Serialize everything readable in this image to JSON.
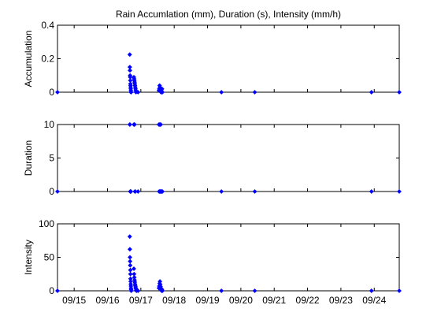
{
  "chart_data": [
    {
      "type": "scatter",
      "title": "Rain Accumlation (mm), Duration (s), Intensity (mm/h)",
      "ylabel": "Accumulation",
      "xlim": [
        "09/14 12:00",
        "09/24 18:00"
      ],
      "ylim": [
        0,
        0.4
      ],
      "yticks": [
        0,
        0.2,
        0.4
      ],
      "ytick_labels": [
        "0",
        "0.2",
        "0.4"
      ],
      "grid": false,
      "marker_color": "#0000ff",
      "points": [
        [
          "09/14 12:00",
          0
        ],
        [
          "09/16 16:00",
          0.225
        ],
        [
          "09/16 16:05",
          0.15
        ],
        [
          "09/16 16:10",
          0.13
        ],
        [
          "09/16 16:15",
          0.1
        ],
        [
          "09/16 16:20",
          0.09
        ],
        [
          "09/16 16:25",
          0.07
        ],
        [
          "09/16 16:30",
          0.05
        ],
        [
          "09/16 16:35",
          0.04
        ],
        [
          "09/16 16:40",
          0.03
        ],
        [
          "09/16 16:45",
          0.02
        ],
        [
          "09/16 16:50",
          0.01
        ],
        [
          "09/16 16:55",
          0
        ],
        [
          "09/16 17:00",
          0
        ],
        [
          "09/16 19:00",
          0.09
        ],
        [
          "09/16 19:10",
          0.08
        ],
        [
          "09/16 19:20",
          0.07
        ],
        [
          "09/16 19:30",
          0.06
        ],
        [
          "09/16 19:40",
          0.05
        ],
        [
          "09/16 19:50",
          0.04
        ],
        [
          "09/16 20:00",
          0.03
        ],
        [
          "09/16 20:10",
          0.02
        ],
        [
          "09/16 20:20",
          0.01
        ],
        [
          "09/16 20:30",
          0
        ],
        [
          "09/16 22:00",
          0
        ],
        [
          "09/17 13:00",
          0.01
        ],
        [
          "09/17 13:15",
          0.02
        ],
        [
          "09/17 13:30",
          0.04
        ],
        [
          "09/17 13:45",
          0.03
        ],
        [
          "09/17 14:00",
          0.02
        ],
        [
          "09/17 14:15",
          0.01
        ],
        [
          "09/17 14:30",
          0
        ],
        [
          "09/17 14:45",
          0.01
        ],
        [
          "09/17 15:00",
          0
        ],
        [
          "09/17 15:15",
          0.02
        ],
        [
          "09/17 15:30",
          0
        ],
        [
          "09/19 10:00",
          0
        ],
        [
          "09/20 10:00",
          0
        ],
        [
          "09/23 22:00",
          0
        ],
        [
          "09/24 18:00",
          0
        ]
      ]
    },
    {
      "type": "scatter",
      "ylabel": "Duration",
      "xlim": [
        "09/14 12:00",
        "09/24 18:00"
      ],
      "ylim": [
        0,
        10
      ],
      "yticks": [
        0,
        5,
        10
      ],
      "ytick_labels": [
        "0",
        "5",
        "10"
      ],
      "grid": false,
      "marker_color": "#0000ff",
      "points": [
        [
          "09/14 12:00",
          0
        ],
        [
          "09/16 16:00",
          10
        ],
        [
          "09/16 16:10",
          10
        ],
        [
          "09/16 16:20",
          0
        ],
        [
          "09/16 16:30",
          0
        ],
        [
          "09/16 16:40",
          0
        ],
        [
          "09/16 16:50",
          0
        ],
        [
          "09/16 19:00",
          10
        ],
        [
          "09/16 19:15",
          10
        ],
        [
          "09/16 19:30",
          10
        ],
        [
          "09/16 19:45",
          0
        ],
        [
          "09/16 20:00",
          0
        ],
        [
          "09/16 22:00",
          0
        ],
        [
          "09/17 13:00",
          10
        ],
        [
          "09/17 13:20",
          10
        ],
        [
          "09/17 13:40",
          10
        ],
        [
          "09/17 14:00",
          10
        ],
        [
          "09/17 14:20",
          10
        ],
        [
          "09/17 13:10",
          0
        ],
        [
          "09/17 13:30",
          0
        ],
        [
          "09/17 13:50",
          0
        ],
        [
          "09/17 14:10",
          0
        ],
        [
          "09/17 14:30",
          0
        ],
        [
          "09/17 14:50",
          0
        ],
        [
          "09/17 15:10",
          0
        ],
        [
          "09/17 15:30",
          0
        ],
        [
          "09/19 10:00",
          0
        ],
        [
          "09/20 10:00",
          0
        ],
        [
          "09/23 22:00",
          0
        ],
        [
          "09/24 18:00",
          0
        ]
      ]
    },
    {
      "type": "scatter",
      "ylabel": "Intensity",
      "xlim": [
        "09/14 12:00",
        "09/24 18:00"
      ],
      "ylim": [
        0,
        100
      ],
      "yticks": [
        0,
        50,
        100
      ],
      "ytick_labels": [
        "0",
        "50",
        "100"
      ],
      "xticks": [
        "09/15",
        "09/16",
        "09/17",
        "09/18",
        "09/19",
        "09/20",
        "09/21",
        "09/22",
        "09/23",
        "09/24"
      ],
      "xtick_labels": [
        "09/15",
        "09/16",
        "09/17",
        "09/18",
        "09/19",
        "09/20",
        "09/21",
        "09/22",
        "09/23",
        "09/24"
      ],
      "grid": false,
      "marker_color": "#0000ff",
      "points": [
        [
          "09/14 12:00",
          0
        ],
        [
          "09/16 16:00",
          81
        ],
        [
          "09/16 16:05",
          62
        ],
        [
          "09/16 16:10",
          50
        ],
        [
          "09/16 16:15",
          44
        ],
        [
          "09/16 16:20",
          38
        ],
        [
          "09/16 16:25",
          31
        ],
        [
          "09/16 16:30",
          25
        ],
        [
          "09/16 16:35",
          18
        ],
        [
          "09/16 16:40",
          14
        ],
        [
          "09/16 16:45",
          10
        ],
        [
          "09/16 16:50",
          7
        ],
        [
          "09/16 16:55",
          4
        ],
        [
          "09/16 17:00",
          2
        ],
        [
          "09/16 17:05",
          0
        ],
        [
          "09/16 19:00",
          33
        ],
        [
          "09/16 19:10",
          25
        ],
        [
          "09/16 19:20",
          20
        ],
        [
          "09/16 19:30",
          16
        ],
        [
          "09/16 19:40",
          13
        ],
        [
          "09/16 19:50",
          10
        ],
        [
          "09/16 20:00",
          8
        ],
        [
          "09/16 20:10",
          6
        ],
        [
          "09/16 20:20",
          4
        ],
        [
          "09/16 20:30",
          3
        ],
        [
          "09/16 20:40",
          1
        ],
        [
          "09/16 20:50",
          0
        ],
        [
          "09/16 22:00",
          0
        ],
        [
          "09/17 13:00",
          4
        ],
        [
          "09/17 13:15",
          7
        ],
        [
          "09/17 13:30",
          11
        ],
        [
          "09/17 13:45",
          14
        ],
        [
          "09/17 14:00",
          9
        ],
        [
          "09/17 14:15",
          6
        ],
        [
          "09/17 14:30",
          3
        ],
        [
          "09/17 14:45",
          1
        ],
        [
          "09/17 15:00",
          0
        ],
        [
          "09/17 15:15",
          2
        ],
        [
          "09/17 15:30",
          0
        ],
        [
          "09/19 10:00",
          0
        ],
        [
          "09/20 10:00",
          0
        ],
        [
          "09/23 22:00",
          0
        ],
        [
          "09/24 18:00",
          0
        ]
      ]
    }
  ]
}
